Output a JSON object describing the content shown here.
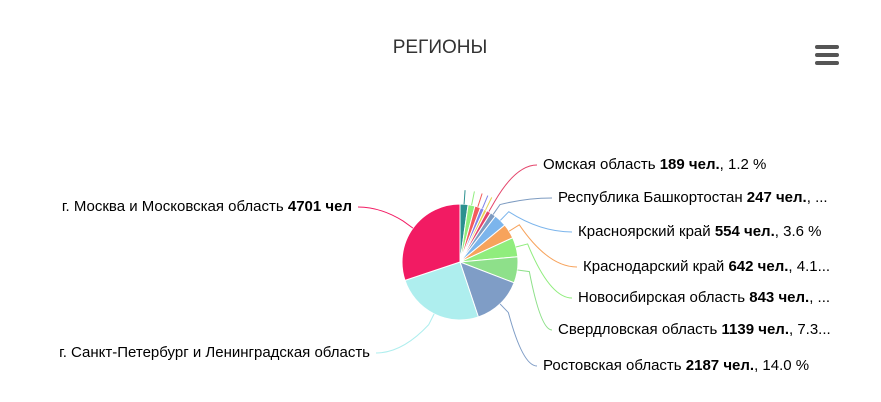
{
  "chart_data": {
    "type": "pie",
    "title": "РЕГИОНЫ",
    "categories": [
      null,
      null,
      null,
      null,
      null,
      "Омская область",
      "Республика Башкортостан",
      "Красноярский край",
      "Краснодарский край",
      "Новосибирская область",
      "Свердловская область",
      "Ростовская область",
      "г. Санкт-Петербург и Ленинградская область",
      "г. Москва и Московская область"
    ],
    "values": [
      350,
      300,
      250,
      170,
      128,
      189,
      247,
      554,
      642,
      843,
      1139,
      2187,
      3900,
      4701
    ],
    "value_labels": [
      null,
      null,
      null,
      null,
      null,
      "189 чел.",
      "247 чел.",
      "554 чел.",
      "642 чел.",
      "843 чел.",
      "1139 чел.",
      "2187 чел.",
      null,
      "4701 чел"
    ],
    "label_suffixes": [
      null,
      null,
      null,
      null,
      null,
      ", 1.2 %",
      ", ...",
      ", 3.6 %",
      ", 4.1...",
      ", ...",
      ", 7.3...",
      ", 14.0 %",
      null,
      null
    ],
    "colors": [
      "#2b908f",
      "#90ed7d",
      "#f45b5b",
      "#8085e9",
      "#e4d354",
      "#e4456b",
      "#7d9bc1",
      "#7cb5ec",
      "#f7a35c",
      "#90ed7d",
      "#8ee08a",
      "#7f9dc6",
      "#aeeeee",
      "#f21b63"
    ]
  }
}
